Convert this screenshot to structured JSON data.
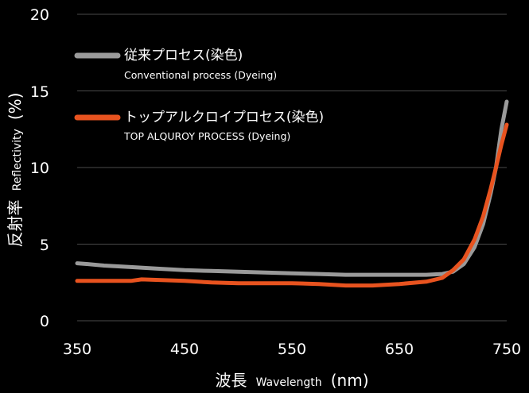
{
  "chart_data": {
    "type": "line",
    "xlabel": {
      "jp": "波長",
      "en": "Wavelength",
      "unit": "(nm)"
    },
    "ylabel": {
      "jp": "反射率",
      "en": "Reflectivity",
      "unit": "(%)"
    },
    "xlim": [
      350,
      750
    ],
    "ylim": [
      0,
      20
    ],
    "x_ticks": [
      "350",
      "450",
      "550",
      "650",
      "750"
    ],
    "y_ticks": [
      "0",
      "5",
      "10",
      "15",
      "20"
    ],
    "grid": "horizontal",
    "legend_position": "top-left",
    "series": [
      {
        "name": "従来プロセス(染色)",
        "name_en": "Conventional process (Dyeing)",
        "color": "#9a9a9a",
        "points": [
          [
            350,
            3.75
          ],
          [
            360,
            3.7
          ],
          [
            375,
            3.6
          ],
          [
            400,
            3.5
          ],
          [
            425,
            3.4
          ],
          [
            450,
            3.3
          ],
          [
            475,
            3.25
          ],
          [
            500,
            3.2
          ],
          [
            525,
            3.15
          ],
          [
            550,
            3.1
          ],
          [
            575,
            3.05
          ],
          [
            600,
            3.0
          ],
          [
            625,
            3.0
          ],
          [
            650,
            3.0
          ],
          [
            675,
            3.0
          ],
          [
            690,
            3.05
          ],
          [
            700,
            3.2
          ],
          [
            710,
            3.7
          ],
          [
            720,
            4.8
          ],
          [
            728,
            6.3
          ],
          [
            735,
            8.3
          ],
          [
            740,
            10.0
          ],
          [
            745,
            12.5
          ],
          [
            750,
            14.3
          ]
        ]
      },
      {
        "name": "トップアルクロイプロセス(染色)",
        "name_en": "TOP ALQUROY PROCESS (Dyeing)",
        "color": "#e8531f",
        "points": [
          [
            350,
            2.6
          ],
          [
            375,
            2.6
          ],
          [
            400,
            2.6
          ],
          [
            410,
            2.7
          ],
          [
            450,
            2.6
          ],
          [
            475,
            2.5
          ],
          [
            500,
            2.45
          ],
          [
            550,
            2.45
          ],
          [
            575,
            2.4
          ],
          [
            600,
            2.3
          ],
          [
            625,
            2.3
          ],
          [
            650,
            2.4
          ],
          [
            675,
            2.55
          ],
          [
            690,
            2.8
          ],
          [
            700,
            3.3
          ],
          [
            710,
            4.0
          ],
          [
            720,
            5.3
          ],
          [
            728,
            6.8
          ],
          [
            735,
            8.6
          ],
          [
            740,
            10.0
          ],
          [
            745,
            11.5
          ],
          [
            750,
            12.8
          ]
        ]
      }
    ]
  }
}
